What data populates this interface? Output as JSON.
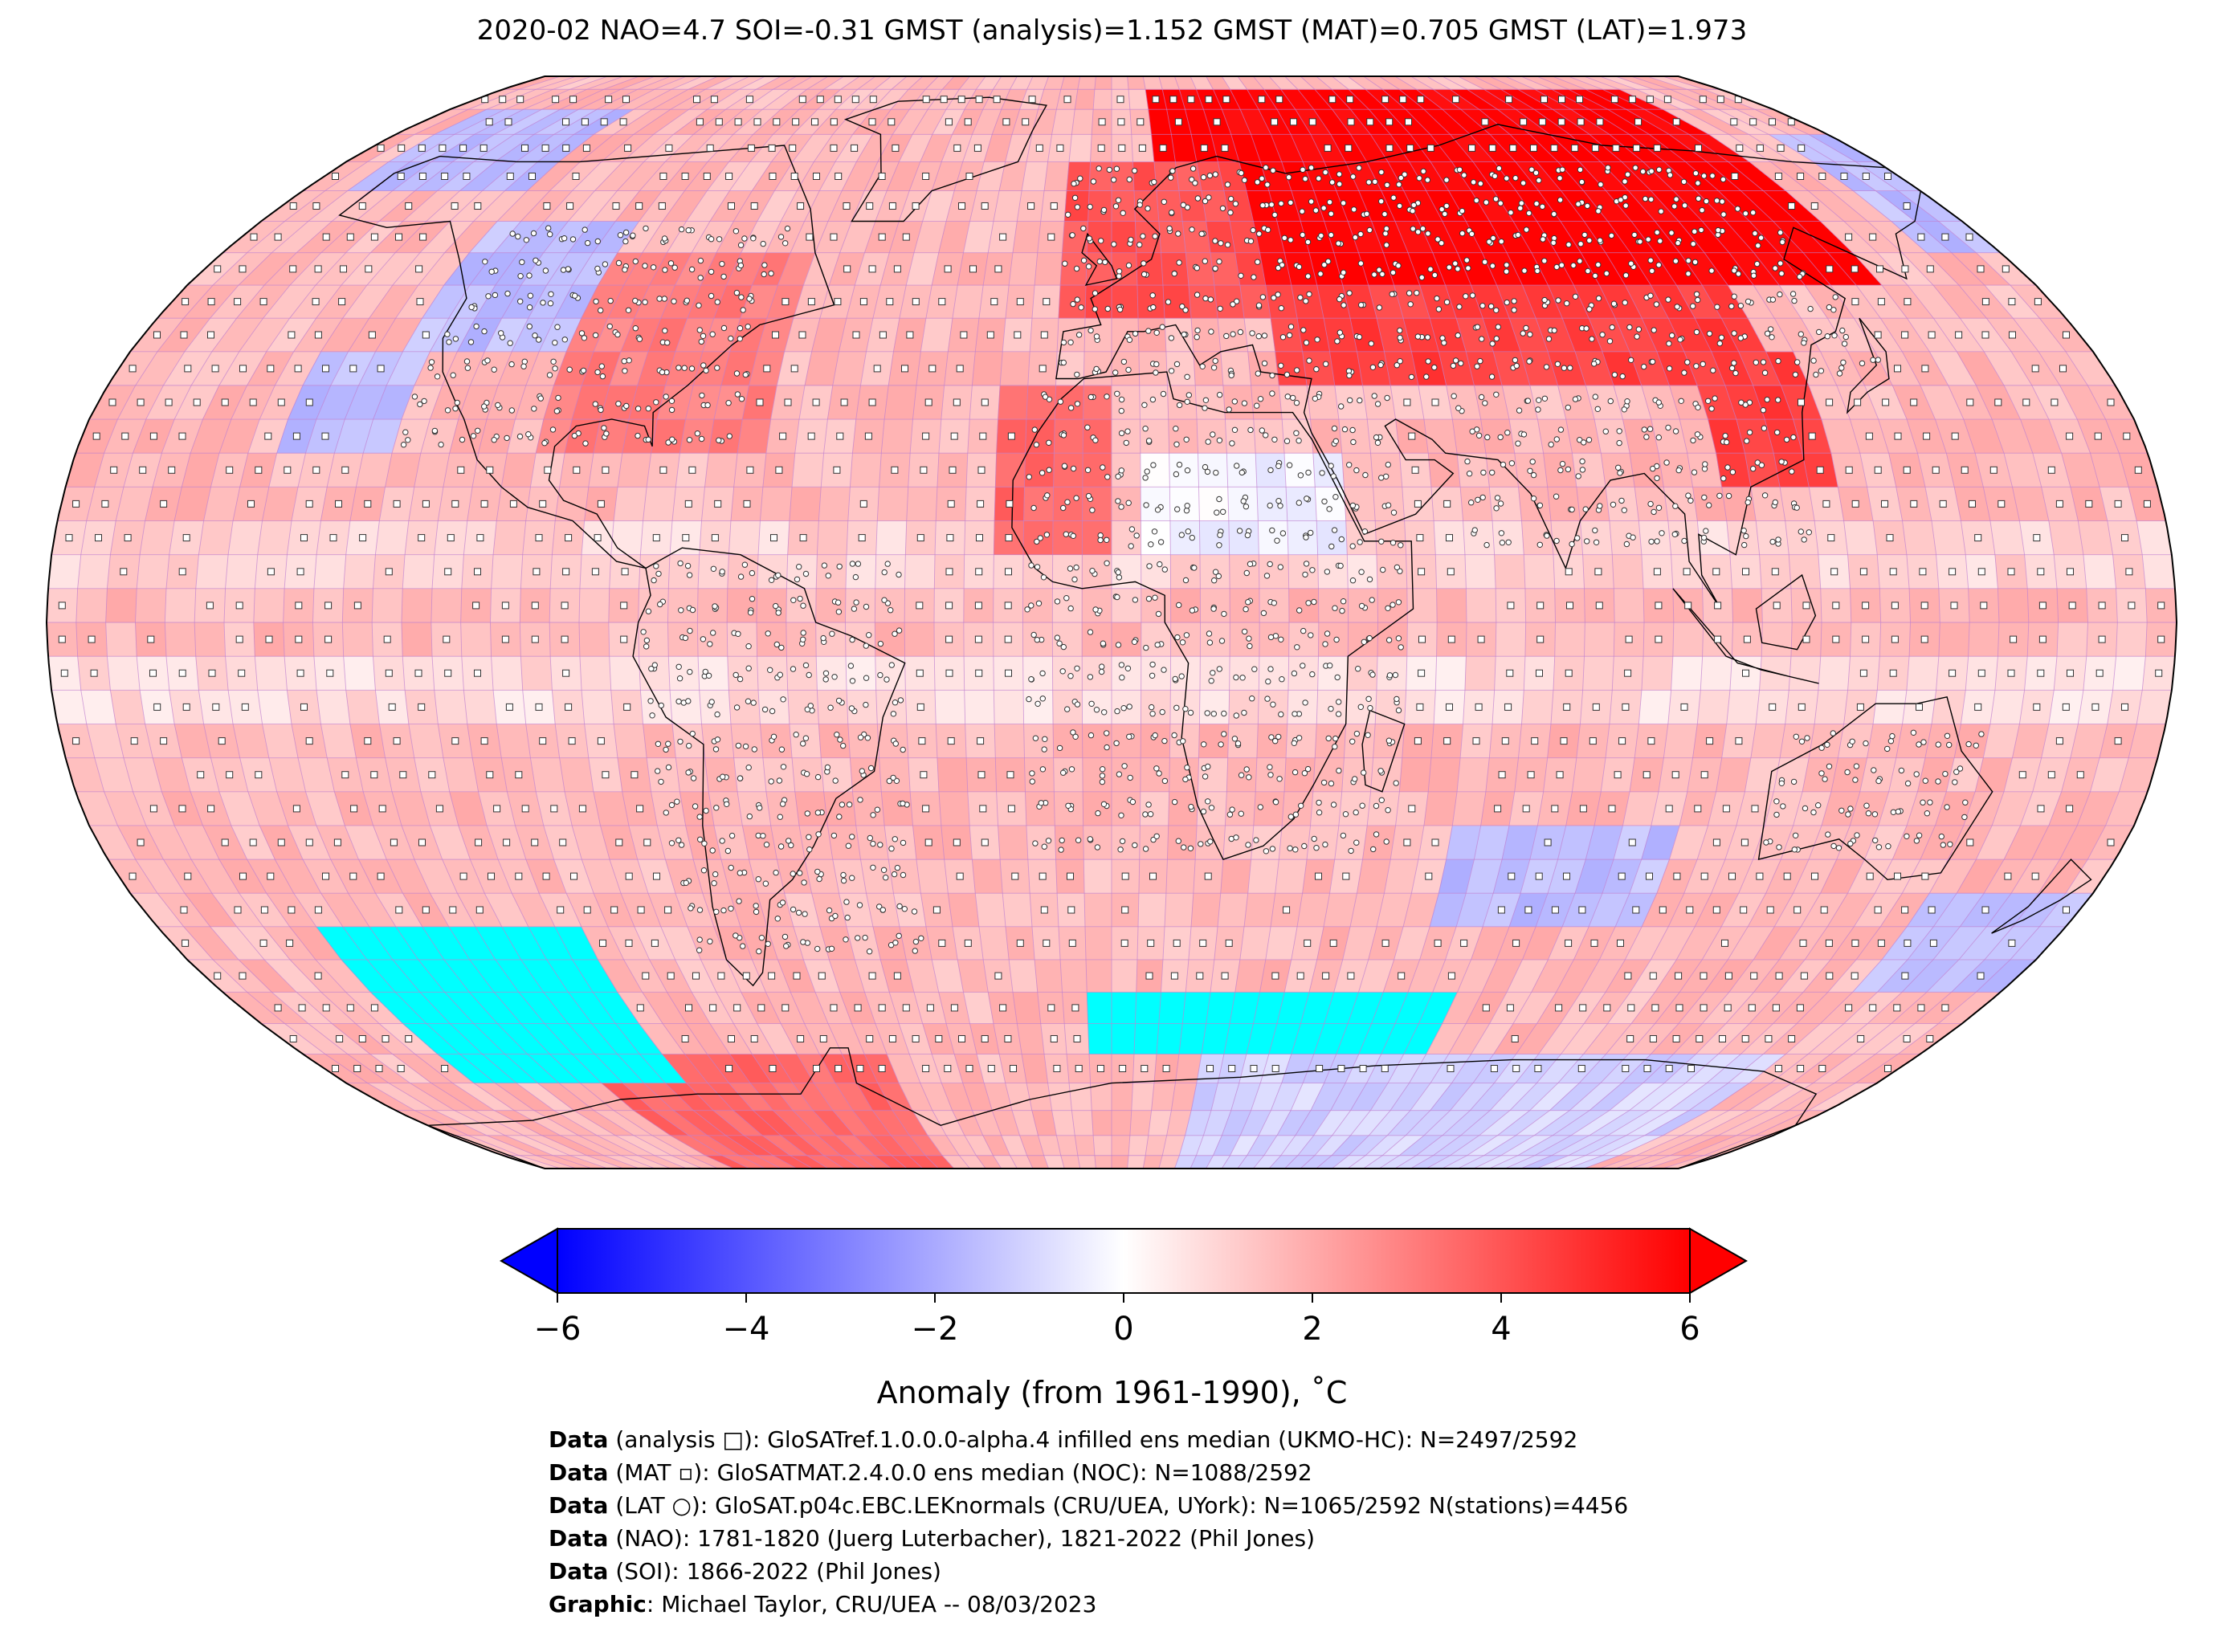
{
  "title": "2020-02 NAO=4.7 SOI=-0.31 GMST (analysis)=1.152 GMST (MAT)=0.705 GMST (LAT)=1.973",
  "colors": {
    "cold_max": "#0000ff",
    "neutral": "#ffffff",
    "warm_max": "#ff0000",
    "no_data": "#00ffff",
    "grid_line": "#c080d0",
    "coast": "#000000"
  },
  "map": {
    "projection": "Robinson",
    "grid_resolution_deg": 5,
    "marker_legend": {
      "analysis": "square",
      "MAT": "small-square",
      "LAT": "circle"
    },
    "anomaly_regions": [
      {
        "name": "Eurasia-north",
        "lon": [
          10,
          150
        ],
        "lat": [
          50,
          85
        ],
        "anomaly": 6
      },
      {
        "name": "Eurasia-mid",
        "lon": [
          30,
          120
        ],
        "lat": [
          35,
          50
        ],
        "anomaly": 4.5
      },
      {
        "name": "China-east",
        "lon": [
          105,
          125
        ],
        "lat": [
          20,
          40
        ],
        "anomaly": 4.5
      },
      {
        "name": "Europe",
        "lon": [
          -10,
          30
        ],
        "lat": [
          45,
          70
        ],
        "anomaly": 4
      },
      {
        "name": "North-America-east",
        "lon": [
          -100,
          -60
        ],
        "lat": [
          25,
          55
        ],
        "anomaly": 3
      },
      {
        "name": "North-Africa-west",
        "lon": [
          -20,
          0
        ],
        "lat": [
          10,
          35
        ],
        "anomaly": 3.5
      },
      {
        "name": "Canada-west",
        "lon": [
          -130,
          -100
        ],
        "lat": [
          40,
          60
        ],
        "anomaly": -1.5
      },
      {
        "name": "Pacific-northeast",
        "lon": [
          -145,
          -125
        ],
        "lat": [
          25,
          40
        ],
        "anomaly": -1.5
      },
      {
        "name": "Alaska-Arctic",
        "lon": [
          -170,
          -130
        ],
        "lat": [
          65,
          80
        ],
        "anomaly": -1.5
      },
      {
        "name": "East-Siberia",
        "lon": [
          165,
          180
        ],
        "lat": [
          55,
          75
        ],
        "anomaly": -1.5
      },
      {
        "name": "South-Indian-Ocean",
        "lon": [
          60,
          100
        ],
        "lat": [
          -45,
          -30
        ],
        "anomaly": -1.5
      },
      {
        "name": "South-Pacific-west",
        "lon": [
          150,
          180
        ],
        "lat": [
          -55,
          -40
        ],
        "anomaly": -1.5
      },
      {
        "name": "Sahara",
        "lon": [
          5,
          40
        ],
        "lat": [
          10,
          25
        ],
        "anomaly": -0.3
      },
      {
        "name": "Antarctica-east",
        "lon": [
          20,
          150
        ],
        "lat": [
          -90,
          -65
        ],
        "anomaly": -1
      },
      {
        "name": "Antarctica-west",
        "lon": [
          -120,
          -50
        ],
        "lat": [
          -90,
          -65
        ],
        "anomaly": 3.5
      }
    ],
    "no_data_regions": [
      {
        "lon": [
          -150,
          -100
        ],
        "lat": [
          -70,
          -45
        ]
      },
      {
        "lon": [
          -5,
          70
        ],
        "lat": [
          -65,
          -55
        ]
      }
    ]
  },
  "colorbar": {
    "ticks": [
      "−6",
      "−4",
      "−2",
      "0",
      "2",
      "4",
      "6"
    ],
    "min": -6,
    "max": 6,
    "extend": "both",
    "label": "Anomaly (from 1961-1990), ˚C"
  },
  "credits": [
    {
      "bold": "Data",
      "text": " (analysis □): GloSATref.1.0.0.0-alpha.4 infilled ens median (UKMO-HC): N=2497/2592"
    },
    {
      "bold": "Data",
      "text": " (MAT ▫): GloSATMAT.2.4.0.0 ens median (NOC): N=1088/2592"
    },
    {
      "bold": "Data",
      "text": " (LAT ○): GloSAT.p04c.EBC.LEKnormals (CRU/UEA, UYork): N=1065/2592 N(stations)=4456"
    },
    {
      "bold": "Data",
      "text": " (NAO): 1781-1820 (Juerg Luterbacher), 1821-2022 (Phil Jones)"
    },
    {
      "bold": "Data",
      "text": " (SOI): 1866-2022 (Phil Jones)"
    },
    {
      "bold": "Graphic",
      "text": ": Michael Taylor, CRU/UEA -- 08/03/2023"
    }
  ]
}
